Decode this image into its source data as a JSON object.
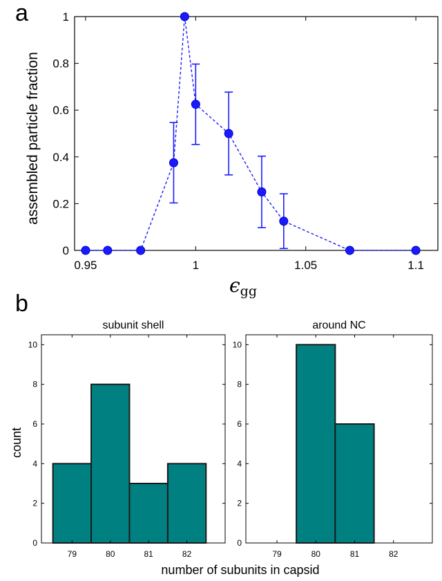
{
  "chart_data": [
    {
      "panel": "a",
      "type": "line",
      "xlabel_symbol": "ϵ",
      "xlabel_sub": "gg",
      "ylabel": "assembled particle fraction",
      "xlim": [
        0.945,
        1.11
      ],
      "ylim": [
        0,
        1
      ],
      "xticks": [
        "0.95",
        "1",
        "1.05",
        "1.1"
      ],
      "yticks": [
        "0",
        "0.2",
        "0.4",
        "0.6",
        "0.8",
        "1"
      ],
      "series": [
        {
          "x": [
            0.95,
            0.96,
            0.975,
            0.99,
            0.995,
            1.0,
            1.015,
            1.03,
            1.04,
            1.07,
            1.1
          ],
          "y": [
            0,
            0,
            0,
            0.375,
            1.0,
            0.625,
            0.5,
            0.25,
            0.125,
            0,
            0
          ],
          "err": [
            0,
            0,
            0,
            0.172,
            0,
            0.172,
            0.177,
            0.153,
            0.117,
            0,
            0
          ]
        }
      ],
      "color": "#1a1aff",
      "grid": false
    },
    {
      "panel": "b",
      "type": "bar",
      "title": "subunit shell",
      "ylabel": "count",
      "categories": [
        "79",
        "80",
        "81",
        "82"
      ],
      "values": [
        4,
        8,
        3,
        4
      ],
      "ylim": [
        0,
        10.5
      ],
      "yticks": [
        "0",
        "2",
        "4",
        "6",
        "8",
        "10"
      ],
      "color": "#008080"
    },
    {
      "panel": "b",
      "type": "bar",
      "title": "around NC",
      "categories": [
        "79",
        "80",
        "81",
        "82"
      ],
      "values": [
        0,
        10,
        6,
        0
      ],
      "ylim": [
        0,
        10.5
      ],
      "yticks": [
        "0",
        "2",
        "4",
        "6",
        "8",
        "10"
      ],
      "color": "#008080"
    }
  ],
  "shared_xlabel": "number of subunits in capsid",
  "panel_letters": {
    "a": "a",
    "b": "b"
  }
}
